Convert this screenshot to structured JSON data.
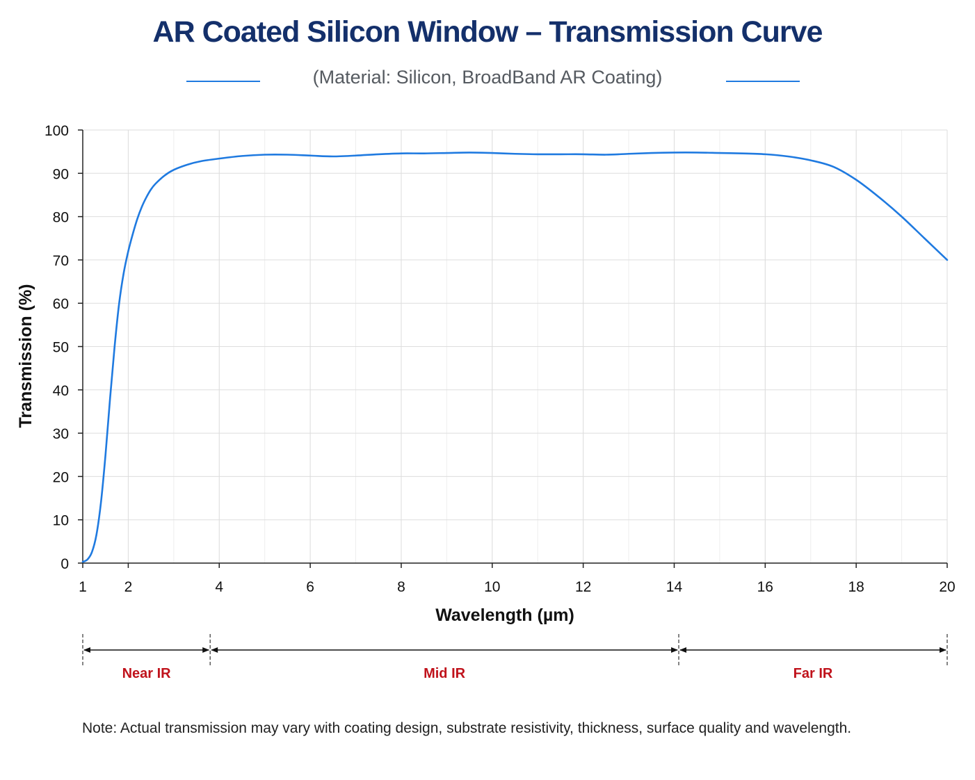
{
  "title": "AR Coated Silicon Window – Transmission Curve",
  "subtitle": "(Material: Silicon, BroadBand AR Coating)",
  "note": "Note: Actual transmission may vary with coating design, substrate resistivity, thickness, surface quality and wavelength.",
  "colors": {
    "title": "#14306b",
    "curve": "#1f7ae0",
    "region_label": "#c0121b",
    "grid": "#dddddd",
    "axis": "#222222"
  },
  "chart_data": {
    "type": "line",
    "title": "AR Coated Silicon Window – Transmission Curve",
    "subtitle": "(Material: Silicon, BroadBand AR Coating)",
    "xlabel": "Wavelength (µm)",
    "ylabel": "Transmission (%)",
    "xlim": [
      1,
      20
    ],
    "ylim": [
      0,
      100
    ],
    "xticks": [
      1,
      2,
      4,
      6,
      8,
      10,
      12,
      14,
      16,
      18,
      20
    ],
    "yticks": [
      0,
      10,
      20,
      30,
      40,
      50,
      60,
      70,
      80,
      90,
      100
    ],
    "grid": true,
    "series": [
      {
        "x": [
          1.0,
          1.1,
          1.2,
          1.3,
          1.4,
          1.5,
          1.6,
          1.7,
          1.8,
          1.9,
          2.0,
          2.1,
          2.2,
          2.3,
          2.4,
          2.5,
          2.6,
          2.8,
          3.0,
          3.3,
          3.6,
          4.0,
          4.5,
          5.0,
          5.5,
          6.0,
          6.5,
          7.0,
          7.5,
          8.0,
          8.5,
          9.0,
          9.5,
          10.0,
          10.5,
          11.0,
          11.5,
          12.0,
          12.5,
          13.0,
          13.5,
          14.0,
          14.5,
          15.0,
          15.5,
          16.0,
          16.5,
          17.0,
          17.5,
          18.0,
          18.5,
          19.0,
          19.5,
          20.0
        ],
        "y": [
          0.3,
          0.8,
          2.5,
          6.5,
          14,
          25,
          38,
          50,
          60,
          67,
          72,
          76,
          79.5,
          82.3,
          84.5,
          86.3,
          87.6,
          89.5,
          90.8,
          92.0,
          92.8,
          93.4,
          94.0,
          94.3,
          94.3,
          94.1,
          93.9,
          94.1,
          94.4,
          94.6,
          94.6,
          94.7,
          94.8,
          94.7,
          94.5,
          94.4,
          94.4,
          94.4,
          94.3,
          94.5,
          94.7,
          94.8,
          94.8,
          94.7,
          94.6,
          94.4,
          93.9,
          93.0,
          91.5,
          88.5,
          84.5,
          80.0,
          75.0,
          70.0
        ]
      }
    ],
    "regions": [
      {
        "label": "Near IR",
        "start": 1,
        "end": 3.8
      },
      {
        "label": "Mid IR",
        "start": 3.8,
        "end": 14.1
      },
      {
        "label": "Far IR",
        "start": 14.1,
        "end": 20
      }
    ]
  }
}
